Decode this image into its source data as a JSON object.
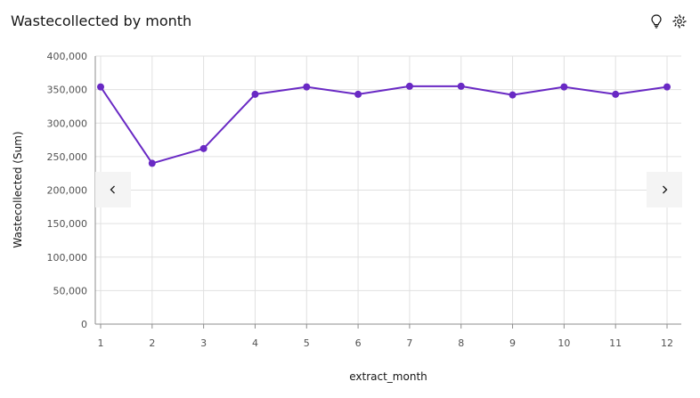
{
  "header": {
    "title": "Wastecollected by month",
    "icons": [
      "lightbulb-icon",
      "settings-icon"
    ]
  },
  "colors": {
    "series": "#6929c4",
    "grid": "#e0e0e0",
    "axis": "#8d8d8d",
    "nav_bg": "#f4f4f4"
  },
  "chart_data": {
    "type": "line",
    "title": "",
    "xlabel": "extract_month",
    "ylabel": "Wastecollected (Sum)",
    "x": [
      1,
      2,
      3,
      4,
      5,
      6,
      7,
      8,
      9,
      10,
      11,
      12
    ],
    "series": [
      {
        "values": [
          354000,
          240000,
          262000,
          343000,
          354000,
          343000,
          355000,
          355000,
          342000,
          354000,
          343000,
          354000
        ]
      }
    ],
    "ylim": [
      0,
      400000
    ],
    "yticks": [
      0,
      50000,
      100000,
      150000,
      200000,
      250000,
      300000,
      350000,
      400000
    ],
    "ytick_labels": [
      "0",
      "50,000",
      "100,000",
      "150,000",
      "200,000",
      "250,000",
      "300,000",
      "350,000",
      "400,000"
    ],
    "xtick_labels": [
      "1",
      "2",
      "3",
      "4",
      "5",
      "6",
      "7",
      "8",
      "9",
      "10",
      "11",
      "12"
    ],
    "grid": true,
    "legend": "none"
  },
  "nav": {
    "prev_icon": "chevron-left-icon",
    "next_icon": "chevron-right-icon"
  }
}
